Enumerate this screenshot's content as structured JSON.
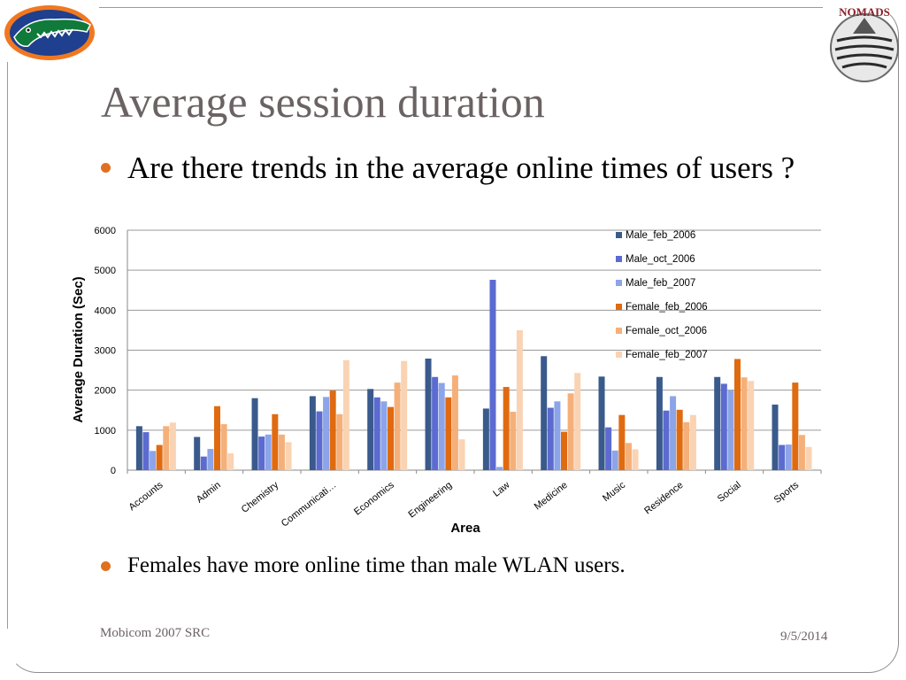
{
  "slide": {
    "title": "Average session duration",
    "bullets": [
      "Are there trends in the average online times of users ?",
      "Females have more online time than male WLAN users."
    ],
    "footer_left": "Mobicom 2007 SRC",
    "footer_right": "9/5/2014",
    "logo_right_text": "NOMADS",
    "bullet_color": "#e07020",
    "title_color": "#6b6263"
  },
  "chart_data": {
    "type": "bar",
    "xlabel": "Area",
    "ylabel": "Average Duration (Sec)",
    "ylim": [
      0,
      6000
    ],
    "yticks": [
      0,
      1000,
      2000,
      3000,
      4000,
      5000,
      6000
    ],
    "grid": true,
    "legend_position": "top-right",
    "categories": [
      "Accounts",
      "Admin",
      "Chemistry",
      "Communicati…",
      "Economics",
      "Engineering",
      "Law",
      "Medicine",
      "Music",
      "Residence",
      "Social",
      "Sports"
    ],
    "series": [
      {
        "name": "Male_feb_2006",
        "color": "#3a5a8c",
        "values": [
          1100,
          830,
          1800,
          1850,
          2030,
          2790,
          1540,
          2850,
          2340,
          2330,
          2330,
          1640
        ]
      },
      {
        "name": "Male_oct_2006",
        "color": "#5b6bd0",
        "values": [
          950,
          340,
          840,
          1470,
          1820,
          2330,
          4760,
          1560,
          1070,
          1490,
          2160,
          630
        ]
      },
      {
        "name": "Male_feb_2007",
        "color": "#8ca4e8",
        "values": [
          480,
          530,
          890,
          1830,
          1720,
          2180,
          80,
          1720,
          490,
          1850,
          2000,
          640
        ]
      },
      {
        "name": "Female_feb_2006",
        "color": "#e06a10",
        "values": [
          630,
          1600,
          1400,
          1990,
          1580,
          1820,
          2080,
          960,
          1380,
          1510,
          2780,
          2190
        ]
      },
      {
        "name": "Female_oct_2006",
        "color": "#f5b07a",
        "values": [
          1100,
          1150,
          890,
          1400,
          2190,
          2370,
          1460,
          1920,
          680,
          1200,
          2320,
          880
        ]
      },
      {
        "name": "Female_feb_2007",
        "color": "#f9d3b3",
        "values": [
          1190,
          420,
          700,
          2750,
          2730,
          770,
          3500,
          2430,
          520,
          1380,
          2230,
          580
        ]
      }
    ]
  }
}
